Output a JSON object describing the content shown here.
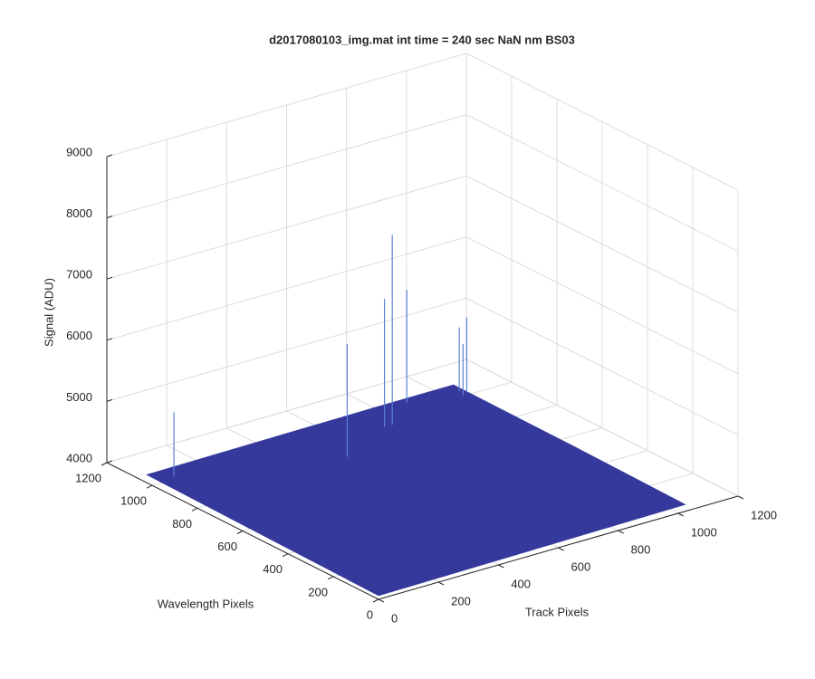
{
  "chart_data": {
    "type": "surface3d",
    "title": "d2017080103_img.mat int time = 240 sec  NaN nm BS03",
    "xlabel": "Track Pixels",
    "ylabel": "Wavelength Pixels",
    "zlabel": "Signal (ADU)",
    "xlim": [
      0,
      1200
    ],
    "ylim": [
      0,
      1200
    ],
    "zlim": [
      4000,
      9000
    ],
    "xticks": [
      0,
      200,
      400,
      600,
      800,
      1000,
      1200
    ],
    "yticks": [
      0,
      200,
      400,
      600,
      800,
      1000,
      1200
    ],
    "zticks": [
      4000,
      5000,
      6000,
      7000,
      8000,
      9000
    ],
    "grid": true,
    "color": "#35399c",
    "spike_color": "#5b7fd6",
    "surface": {
      "x": [
        0,
        256,
        512,
        768,
        1024
      ],
      "y": [
        0,
        256,
        512,
        768,
        1024
      ],
      "z": [
        [
          4060,
          4072,
          4085,
          4098,
          4110
        ],
        [
          4078,
          4090,
          4102,
          4115,
          4128
        ],
        [
          4095,
          4108,
          4120,
          4133,
          4145
        ],
        [
          4112,
          4125,
          4138,
          4150,
          4152
        ],
        [
          4130,
          4140,
          4150,
          4158,
          4160
        ]
      ]
    },
    "spikes": {
      "x": [
        726,
        850,
        700,
        500,
        50,
        1020,
        1010,
        1000
      ],
      "y": [
        900,
        1000,
        900,
        800,
        970,
        960,
        980,
        950
      ],
      "z": [
        7254,
        6000,
        6250,
        5980,
        5180,
        5390,
        5200,
        5000
      ]
    }
  }
}
